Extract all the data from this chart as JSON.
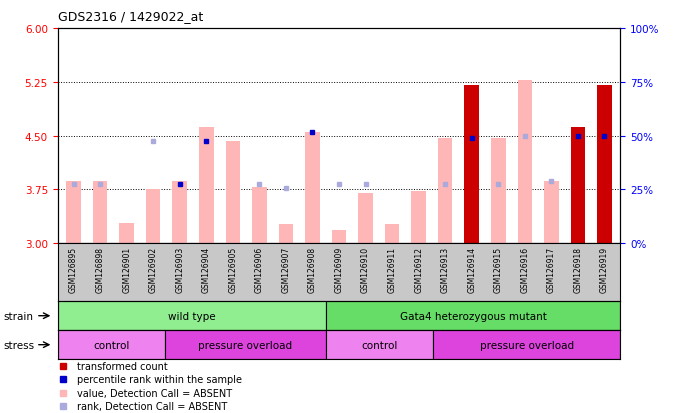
{
  "title": "GDS2316 / 1429022_at",
  "samples": [
    "GSM126895",
    "GSM126898",
    "GSM126901",
    "GSM126902",
    "GSM126903",
    "GSM126904",
    "GSM126905",
    "GSM126906",
    "GSM126907",
    "GSM126908",
    "GSM126909",
    "GSM126910",
    "GSM126911",
    "GSM126912",
    "GSM126913",
    "GSM126914",
    "GSM126915",
    "GSM126916",
    "GSM126917",
    "GSM126918",
    "GSM126919"
  ],
  "bar_values": [
    3.87,
    3.87,
    3.28,
    3.75,
    3.87,
    4.62,
    4.43,
    3.78,
    3.27,
    4.55,
    3.18,
    3.7,
    3.27,
    3.73,
    4.47,
    5.2,
    4.47,
    5.28,
    3.87,
    4.62,
    5.2
  ],
  "bar_absent": [
    true,
    true,
    true,
    true,
    true,
    true,
    true,
    true,
    true,
    true,
    true,
    true,
    true,
    true,
    true,
    false,
    true,
    true,
    true,
    false,
    false
  ],
  "rank_values": [
    3.83,
    3.83,
    null,
    4.43,
    3.83,
    4.43,
    null,
    3.83,
    3.77,
    4.55,
    3.83,
    3.83,
    null,
    null,
    3.82,
    4.47,
    3.83,
    4.5,
    3.87,
    4.5,
    4.5
  ],
  "rank_absent": [
    true,
    true,
    null,
    true,
    false,
    false,
    null,
    true,
    true,
    false,
    true,
    true,
    null,
    null,
    true,
    false,
    true,
    true,
    true,
    false,
    false
  ],
  "ylim_left": [
    3.0,
    6.0
  ],
  "ylim_right": [
    0,
    100
  ],
  "yticks_left": [
    3.0,
    3.75,
    4.5,
    5.25,
    6.0
  ],
  "yticks_right": [
    0,
    25,
    50,
    75,
    100
  ],
  "hlines": [
    3.75,
    4.5,
    5.25
  ],
  "strain_groups": [
    {
      "label": "wild type",
      "start": 0,
      "end": 9,
      "color": "#90EE90"
    },
    {
      "label": "Gata4 heterozygous mutant",
      "start": 10,
      "end": 20,
      "color": "#66DD66"
    }
  ],
  "stress_groups": [
    {
      "label": "control",
      "start": 0,
      "end": 3,
      "color": "#EE82EE"
    },
    {
      "label": "pressure overload",
      "start": 4,
      "end": 9,
      "color": "#DD44DD"
    },
    {
      "label": "control",
      "start": 10,
      "end": 13,
      "color": "#EE82EE"
    },
    {
      "label": "pressure overload",
      "start": 14,
      "end": 20,
      "color": "#DD44DD"
    }
  ],
  "bar_color_present": "#CC0000",
  "bar_color_absent": "#FFB6B6",
  "rank_color_present": "#0000CC",
  "rank_color_absent": "#AAAADD",
  "bar_width": 0.55,
  "tick_bg": "#C8C8C8",
  "plot_bg": "#FFFFFF"
}
